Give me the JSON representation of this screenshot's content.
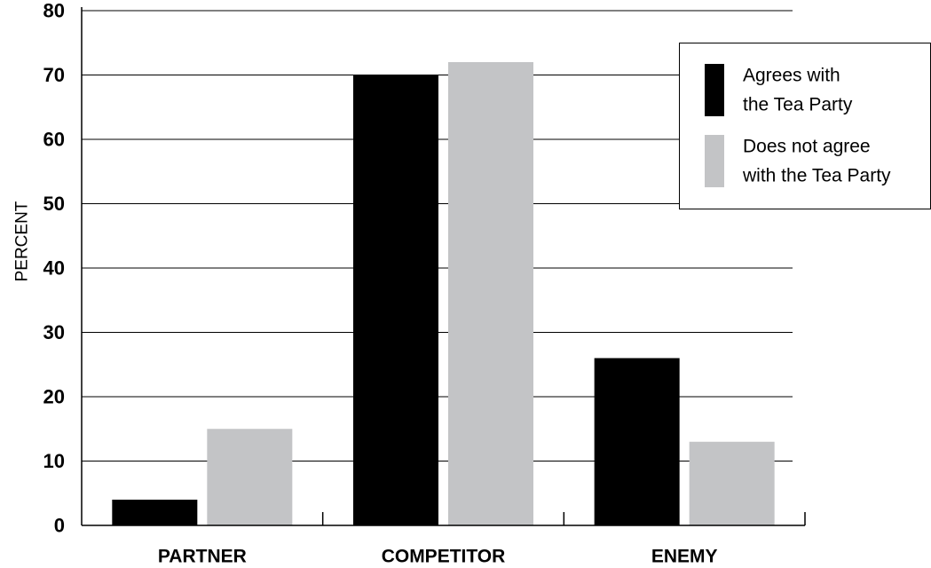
{
  "chart_data": {
    "type": "bar",
    "ylabel": "PERCENT",
    "xlabel": "",
    "ylim": [
      0,
      80
    ],
    "yticks": [
      0,
      10,
      20,
      30,
      40,
      50,
      60,
      70,
      80
    ],
    "grid": true,
    "legend_position": "top-right",
    "categories": [
      "PARTNER",
      "COMPETITOR",
      "ENEMY"
    ],
    "series": [
      {
        "name": "Agrees with the Tea Party",
        "legend_lines": [
          "Agrees with",
          "the Tea Party"
        ],
        "color": "#000000",
        "values": [
          4,
          70,
          26
        ]
      },
      {
        "name": "Does not agree with the Tea Party",
        "legend_lines": [
          "Does not agree",
          "with the Tea Party"
        ],
        "color": "#c3c4c6",
        "values": [
          15,
          72,
          13
        ]
      }
    ]
  }
}
